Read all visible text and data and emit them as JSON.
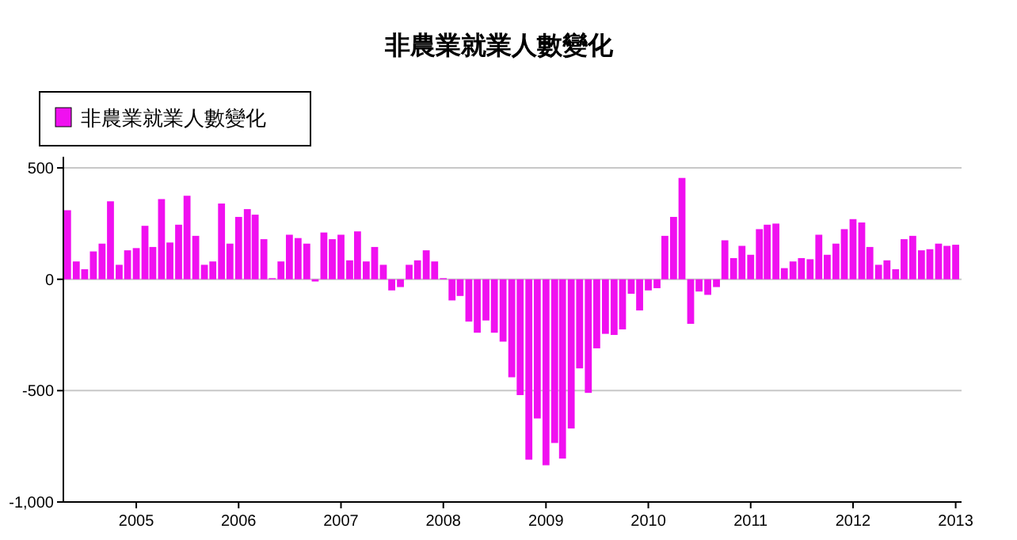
{
  "chart_data": {
    "type": "bar",
    "title": "非農業就業人數變化",
    "x": [
      "2004-05",
      "2004-06",
      "2004-07",
      "2004-08",
      "2004-09",
      "2004-10",
      "2004-11",
      "2004-12",
      "2005-01",
      "2005-02",
      "2005-03",
      "2005-04",
      "2005-05",
      "2005-06",
      "2005-07",
      "2005-08",
      "2005-09",
      "2005-10",
      "2005-11",
      "2005-12",
      "2006-01",
      "2006-02",
      "2006-03",
      "2006-04",
      "2006-05",
      "2006-06",
      "2006-07",
      "2006-08",
      "2006-09",
      "2006-10",
      "2006-11",
      "2006-12",
      "2007-01",
      "2007-02",
      "2007-03",
      "2007-04",
      "2007-05",
      "2007-06",
      "2007-07",
      "2007-08",
      "2007-09",
      "2007-10",
      "2007-11",
      "2007-12",
      "2008-01",
      "2008-02",
      "2008-03",
      "2008-04",
      "2008-05",
      "2008-06",
      "2008-07",
      "2008-08",
      "2008-09",
      "2008-10",
      "2008-11",
      "2008-12",
      "2009-01",
      "2009-02",
      "2009-03",
      "2009-04",
      "2009-05",
      "2009-06",
      "2009-07",
      "2009-08",
      "2009-09",
      "2009-10",
      "2009-11",
      "2009-12",
      "2010-01",
      "2010-02",
      "2010-03",
      "2010-04",
      "2010-05",
      "2010-06",
      "2010-07",
      "2010-08",
      "2010-09",
      "2010-10",
      "2010-11",
      "2010-12",
      "2011-01",
      "2011-02",
      "2011-03",
      "2011-04",
      "2011-05",
      "2011-06",
      "2011-07",
      "2011-08",
      "2011-09",
      "2011-10",
      "2011-11",
      "2011-12",
      "2012-01",
      "2012-02",
      "2012-03",
      "2012-04",
      "2012-05",
      "2012-06",
      "2012-07",
      "2012-08",
      "2012-09",
      "2012-10",
      "2012-11",
      "2012-12",
      "2013-01"
    ],
    "series": [
      {
        "name": "非農業就業人數變化",
        "color": "#f010f0",
        "values": [
          310,
          80,
          45,
          125,
          160,
          350,
          65,
          130,
          140,
          240,
          145,
          360,
          165,
          245,
          375,
          195,
          65,
          80,
          340,
          160,
          280,
          315,
          290,
          180,
          5,
          80,
          200,
          185,
          160,
          -10,
          210,
          180,
          200,
          85,
          215,
          80,
          145,
          65,
          -50,
          -35,
          65,
          85,
          130,
          80,
          5,
          -95,
          -75,
          -190,
          -240,
          -185,
          -240,
          -280,
          -440,
          -520,
          -810,
          -625,
          -835,
          -735,
          -805,
          -670,
          -400,
          -510,
          -310,
          -245,
          -250,
          -225,
          -65,
          -140,
          -50,
          -40,
          195,
          280,
          455,
          -200,
          -55,
          -70,
          -35,
          175,
          95,
          150,
          110,
          225,
          245,
          250,
          50,
          80,
          95,
          90,
          200,
          110,
          160,
          225,
          270,
          255,
          145,
          65,
          85,
          45,
          180,
          195,
          130,
          135,
          160,
          150,
          155
        ]
      }
    ],
    "xlim": [
      "2004-04-16",
      "2013-01-22"
    ],
    "xticks": [
      {
        "value": "2005",
        "label": "2005"
      },
      {
        "value": "2006",
        "label": "2006"
      },
      {
        "value": "2007",
        "label": "2007"
      },
      {
        "value": "2008",
        "label": "2008"
      },
      {
        "value": "2009",
        "label": "2009"
      },
      {
        "value": "2010",
        "label": "2010"
      },
      {
        "value": "2011",
        "label": "2011"
      },
      {
        "value": "2012",
        "label": "2012"
      },
      {
        "value": "2013",
        "label": "2013"
      }
    ],
    "ylim": [
      -1000,
      550
    ],
    "yticks": [
      {
        "value": -1000,
        "label": "-1,000"
      },
      {
        "value": -500,
        "label": "-500"
      },
      0,
      500
    ],
    "grid": "y",
    "legend": "top left"
  }
}
